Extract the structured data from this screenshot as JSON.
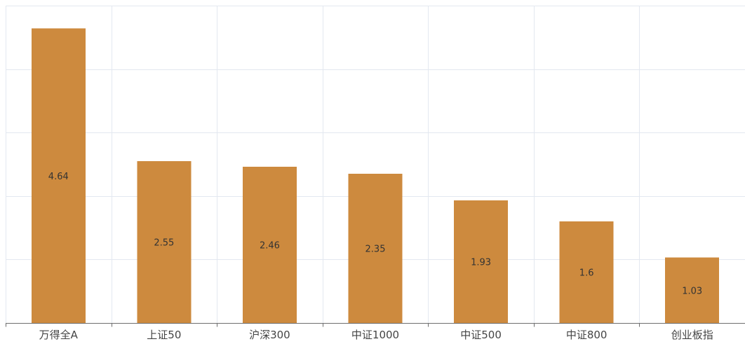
{
  "chart_data": {
    "type": "bar",
    "title": "",
    "xlabel": "",
    "ylabel": "",
    "categories": [
      "万得全A",
      "上证50",
      "沪深300",
      "中证1000",
      "中证500",
      "中证800",
      "创业板指"
    ],
    "values": [
      4.64,
      2.55,
      2.46,
      2.35,
      1.93,
      1.6,
      1.03
    ],
    "ylim": [
      0,
      5
    ],
    "y_gridlines": [
      0,
      1,
      2,
      3,
      4,
      5
    ],
    "grid": true,
    "legend": "none",
    "bar_color": "#cd8a3e",
    "gridline_color": "#e3e8f0",
    "axis_color": "#6e6e6e"
  }
}
